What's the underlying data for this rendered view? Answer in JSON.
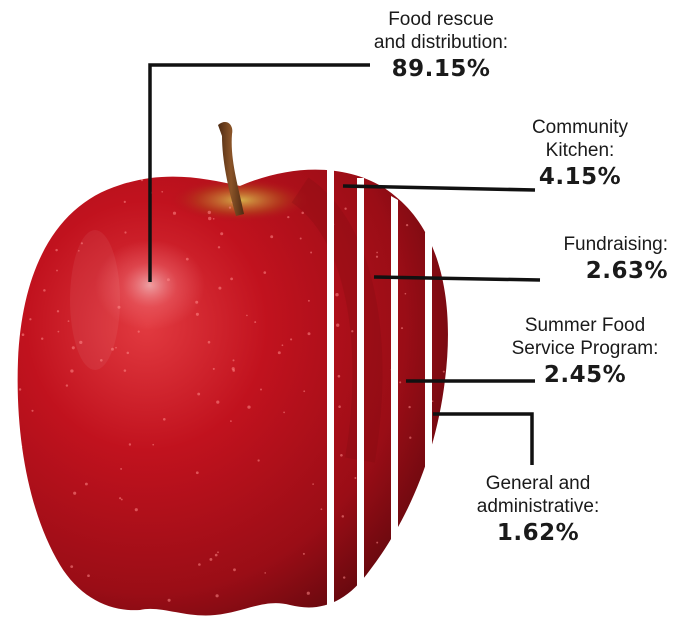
{
  "chart_data": {
    "type": "pie",
    "categories": [
      "Food rescue and distribution",
      "Community Kitchen",
      "Fundraising",
      "Summer Food Service Program",
      "General and administrative"
    ],
    "values": [
      89.15,
      4.15,
      2.63,
      2.45,
      1.62
    ],
    "labels": [
      {
        "name_lines": [
          "Food rescue",
          "and distribution:"
        ],
        "pct": "89.15%"
      },
      {
        "name_lines": [
          "Community",
          "Kitchen:"
        ],
        "pct": "4.15%"
      },
      {
        "name_lines": [
          "Fundraising:"
        ],
        "pct": "2.63%"
      },
      {
        "name_lines": [
          "Summer Food",
          "Service Program:"
        ],
        "pct": "2.45%"
      },
      {
        "name_lines": [
          "General and",
          "administrative:"
        ],
        "pct": "1.62%"
      }
    ],
    "title": "",
    "xlabel": "",
    "ylabel": ""
  },
  "colors": {
    "apple_red": "#b3111c",
    "apple_dark": "#6e0a0f",
    "highlight": "#e8545a",
    "stem": "#6b3a1a",
    "leader_line": "#111111",
    "text": "#1a1a1a"
  },
  "icons": {
    "apple": "apple-image"
  }
}
